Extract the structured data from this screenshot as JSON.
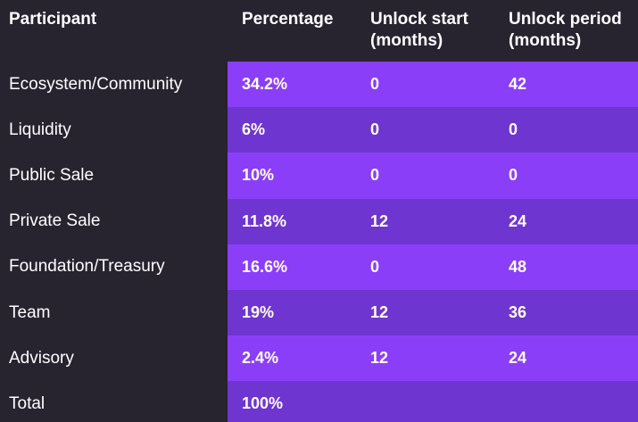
{
  "header": {
    "participant": "Participant",
    "percentage": "Percentage",
    "unlock_start": "Unlock start (months)",
    "unlock_period": "Unlock period (months)"
  },
  "rows": [
    {
      "participant": "Ecosystem/Community",
      "percentage": "34.2%",
      "unlock_start": "0",
      "unlock_period": "42"
    },
    {
      "participant": "Liquidity",
      "percentage": "6%",
      "unlock_start": "0",
      "unlock_period": "0"
    },
    {
      "participant": "Public Sale",
      "percentage": "10%",
      "unlock_start": "0",
      "unlock_period": "0"
    },
    {
      "participant": "Private Sale",
      "percentage": "11.8%",
      "unlock_start": "12",
      "unlock_period": "24"
    },
    {
      "participant": "Foundation/Treasury",
      "percentage": "16.6%",
      "unlock_start": "0",
      "unlock_period": "48"
    },
    {
      "participant": "Team",
      "percentage": "19%",
      "unlock_start": "12",
      "unlock_period": "36"
    },
    {
      "participant": "Advisory",
      "percentage": "2.4%",
      "unlock_start": "12",
      "unlock_period": "24"
    },
    {
      "participant": "Total",
      "percentage": "100%",
      "unlock_start": "",
      "unlock_period": ""
    }
  ],
  "colors": {
    "background": "#27232f",
    "row_light": "#8b3ef8",
    "row_dark": "#6f35d0",
    "text": "#ffffff"
  }
}
